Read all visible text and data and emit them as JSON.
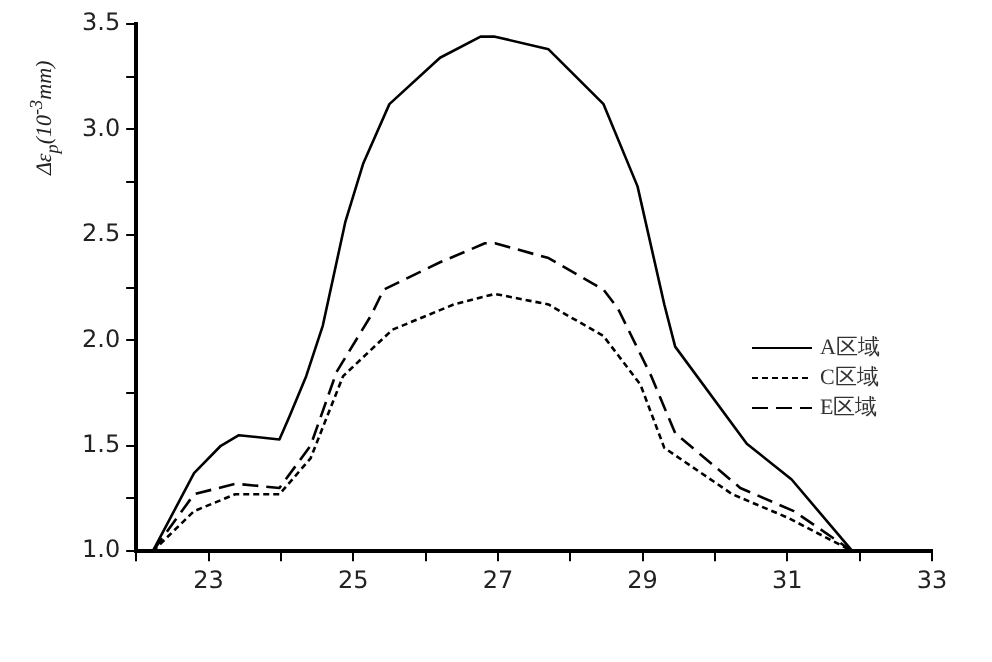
{
  "chart_data": {
    "type": "line",
    "ylabel": "Δε$_{p}$(10$^{-3}$mm)",
    "xlim": [
      22,
      33
    ],
    "xticks": [
      {
        "value": 22,
        "label": null
      },
      23,
      {
        "value": 24,
        "label": null
      },
      25,
      {
        "value": 26,
        "label": null
      },
      27,
      {
        "value": 28,
        "label": null
      },
      29,
      {
        "value": 30,
        "label": null
      },
      31,
      {
        "value": 32,
        "label": null
      },
      33
    ],
    "ylim": [
      1,
      3.5
    ],
    "yticks": [
      {
        "value": 1,
        "label": "1.0"
      },
      {
        "value": 1.25,
        "label": null
      },
      1.5,
      {
        "value": 1.75,
        "label": null
      },
      {
        "value": 2,
        "label": "2.0"
      },
      {
        "value": 2.25,
        "label": null
      },
      2.5,
      {
        "value": 2.75,
        "label": null
      },
      {
        "value": 3,
        "label": "3.0"
      },
      {
        "value": 3.25,
        "label": null
      },
      3.5
    ],
    "grid": false,
    "legend": "right",
    "marker": "none",
    "series": [
      {
        "name": "A区域",
        "color": "#000000",
        "line_style": "solid",
        "x": [
          22.23,
          22.8,
          23.17,
          23.42,
          23.98,
          24.12,
          24.35,
          24.58,
          24.89,
          25.14,
          25.5,
          26.2,
          26.76,
          26.96,
          27.7,
          28.46,
          28.93,
          29.3,
          29.45,
          30.44,
          31.06,
          31.9
        ],
        "values": [
          1.0,
          1.37,
          1.5,
          1.55,
          1.53,
          1.64,
          1.83,
          2.07,
          2.56,
          2.84,
          3.12,
          3.34,
          3.44,
          3.44,
          3.38,
          3.12,
          2.73,
          2.17,
          1.97,
          1.51,
          1.34,
          1.0
        ]
      },
      {
        "name": "C区域",
        "color": "#000000",
        "line_style": "dotted",
        "x": [
          22.23,
          22.8,
          23.37,
          23.98,
          24.41,
          24.86,
          25.54,
          26.39,
          26.96,
          27.7,
          28.46,
          28.97,
          29.3,
          30.24,
          31.0,
          31.9
        ],
        "values": [
          1.0,
          1.19,
          1.27,
          1.27,
          1.44,
          1.83,
          2.05,
          2.17,
          2.22,
          2.17,
          2.02,
          1.79,
          1.49,
          1.27,
          1.16,
          1.0
        ]
      },
      {
        "name": "E区域",
        "color": "#000000",
        "line_style": "dashed",
        "x": [
          22.23,
          22.8,
          23.37,
          23.98,
          24.41,
          24.77,
          25.25,
          25.42,
          26.2,
          26.82,
          26.96,
          27.7,
          28.46,
          28.66,
          29.12,
          29.45,
          30.35,
          31.09,
          31.9
        ],
        "values": [
          1.0,
          1.27,
          1.32,
          1.3,
          1.5,
          1.85,
          2.12,
          2.24,
          2.37,
          2.46,
          2.46,
          2.39,
          2.24,
          2.15,
          1.83,
          1.56,
          1.3,
          1.19,
          1.0
        ]
      }
    ]
  }
}
